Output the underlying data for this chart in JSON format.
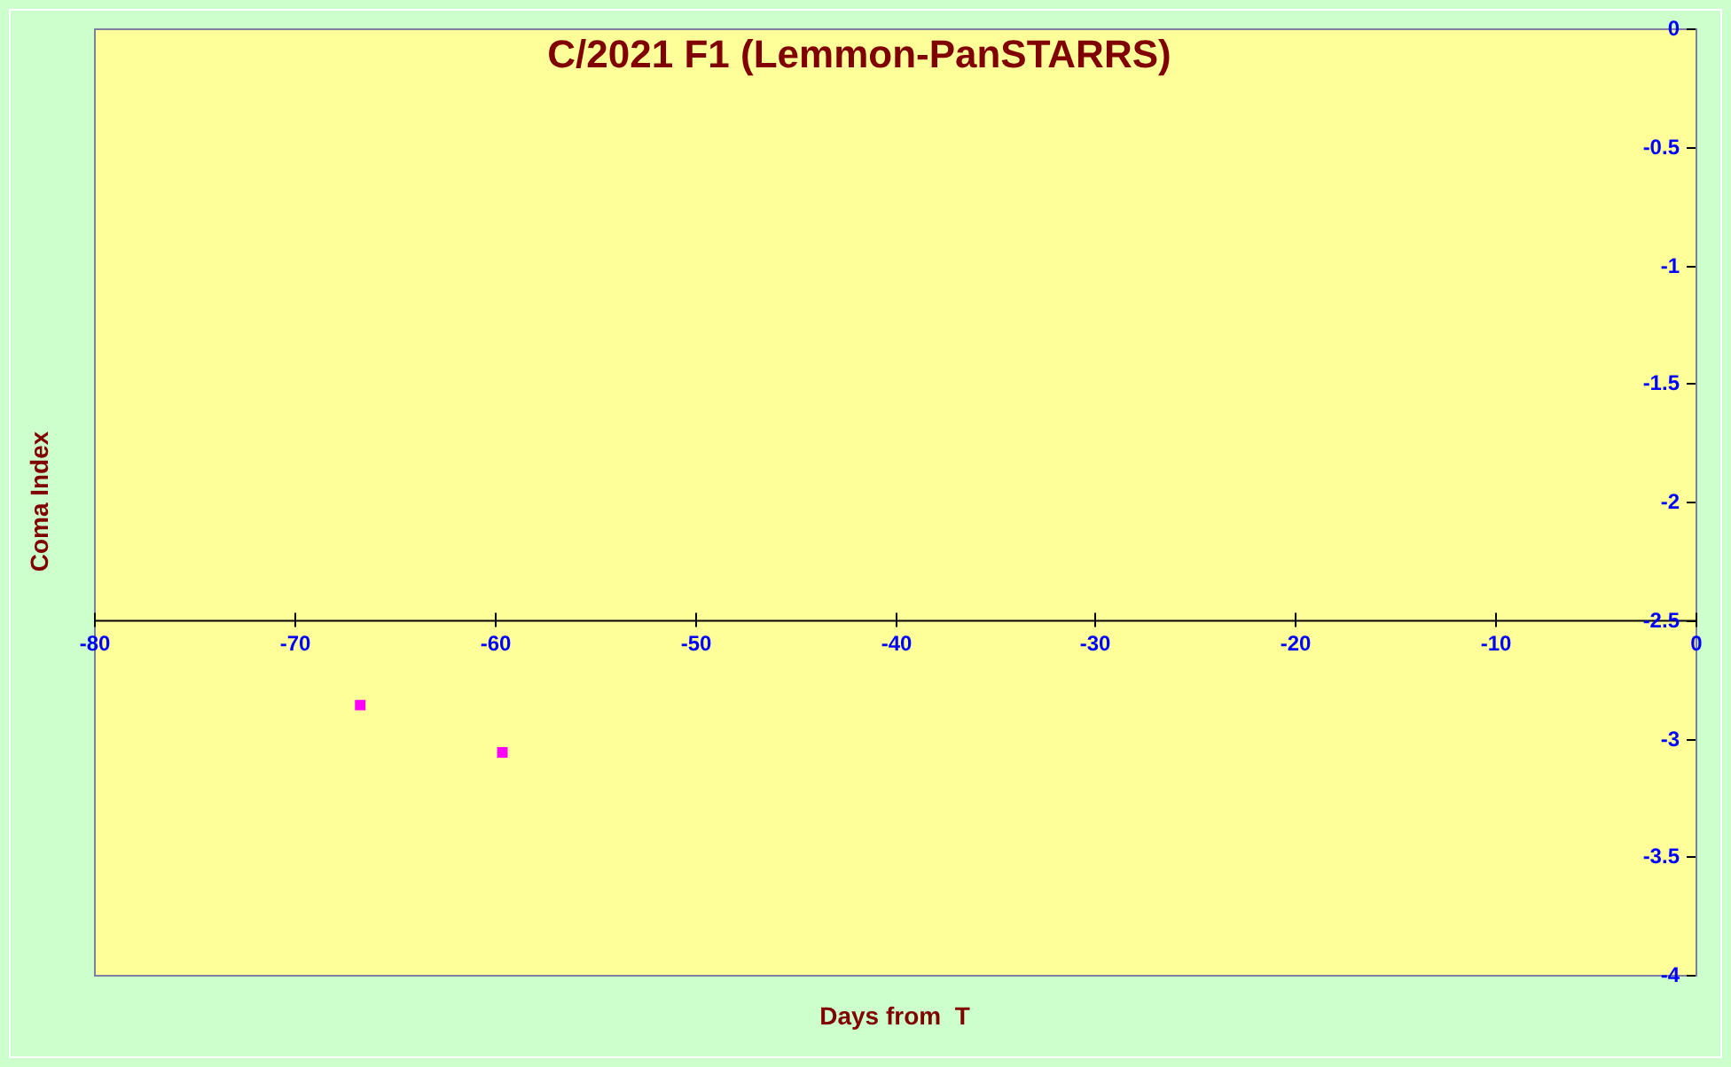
{
  "chart_data": {
    "type": "scatter",
    "title": "C/2021 F1 (Lemmon-PanSTARRS)",
    "xlabel": "Days from  T",
    "ylabel": "Coma Index",
    "x": [
      -66.7,
      -59.6
    ],
    "series": [
      {
        "color": "#ff00ff",
        "values": [
          -2.86,
          -3.06
        ]
      }
    ],
    "xlim": [
      -80,
      0
    ],
    "xticks": [
      -80,
      -70,
      -60,
      -50,
      -40,
      -30,
      -20,
      -10,
      0
    ],
    "ylim": [
      -4,
      0
    ],
    "yticks": [
      0,
      -0.5,
      -1,
      -1.5,
      -2,
      -2.5,
      -3,
      -3.5,
      -4
    ],
    "marker": "square",
    "legend": false
  }
}
